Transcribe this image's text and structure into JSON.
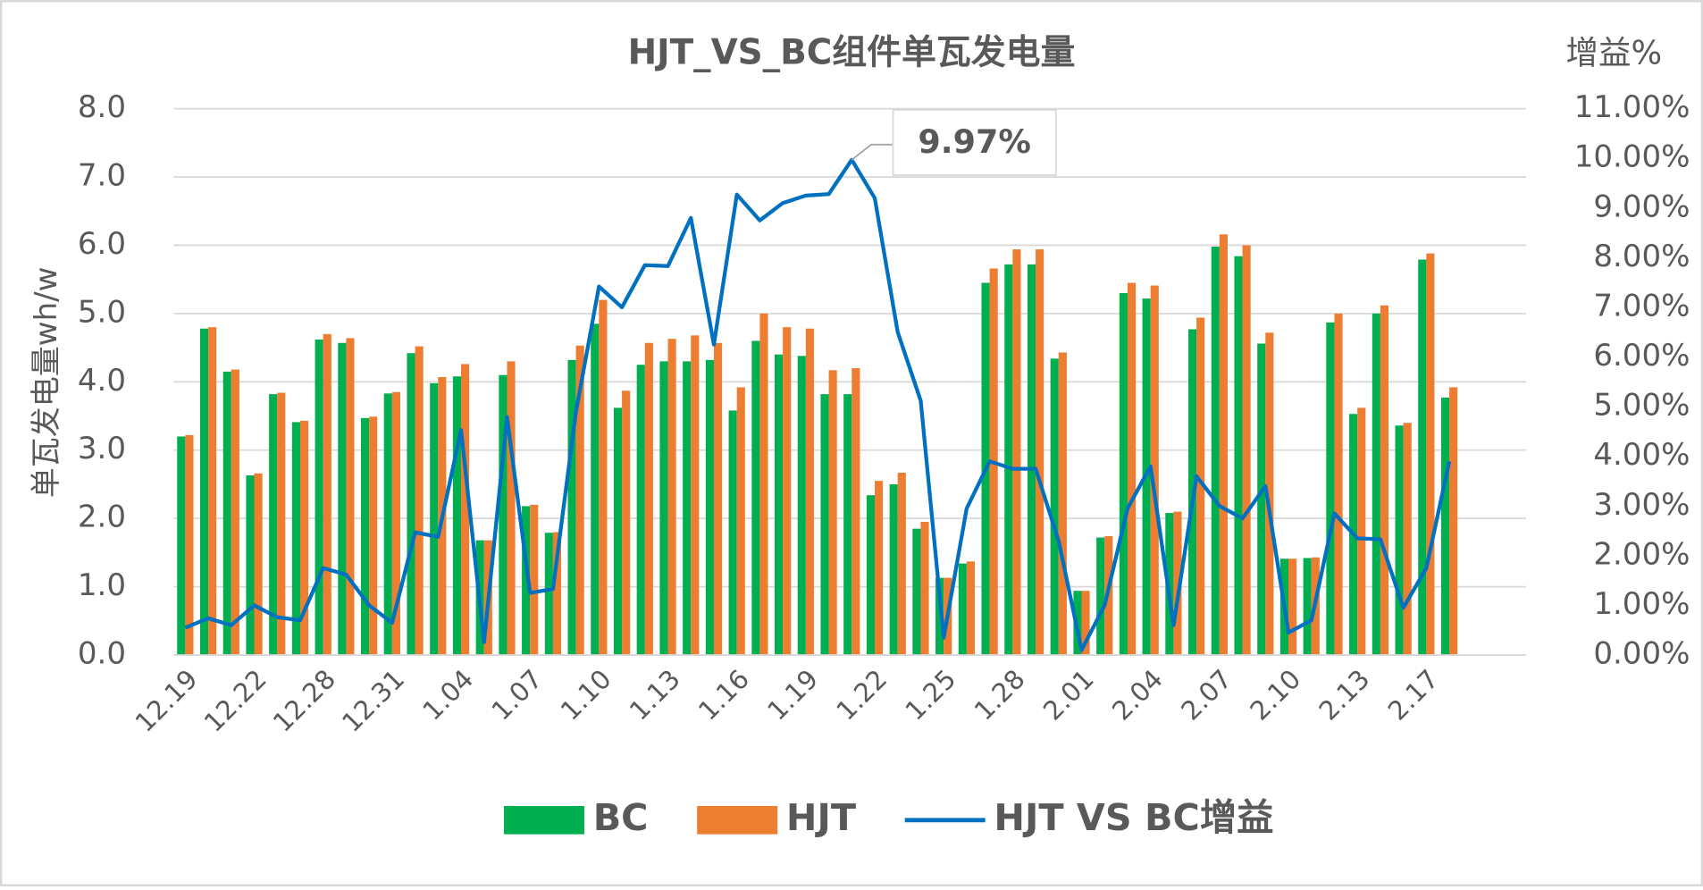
{
  "chart_data": {
    "type": "bar",
    "title": "HJT_VS_BC组件单瓦发电量",
    "y_label": "单瓦发电量wh/w",
    "y2_label": "增益%",
    "categories": [
      "12.19",
      null,
      null,
      "12.22",
      null,
      null,
      "12.28",
      null,
      null,
      "12.31",
      null,
      null,
      "1.04",
      null,
      null,
      "1.07",
      null,
      null,
      "1.10",
      null,
      null,
      "1.13",
      null,
      null,
      "1.16",
      null,
      null,
      "1.19",
      null,
      null,
      "1.22",
      null,
      null,
      "1.25",
      null,
      null,
      "1.28",
      null,
      null,
      "2.01",
      null,
      null,
      "2.04",
      null,
      null,
      "2.07",
      null,
      null,
      "2.10",
      null,
      null,
      "2.13",
      null,
      null,
      "2.17",
      null
    ],
    "series": [
      {
        "name": "BC",
        "type": "bar",
        "color": "#00b050",
        "values": [
          3.2,
          4.78,
          4.15,
          2.63,
          3.82,
          3.41,
          4.62,
          4.57,
          3.47,
          3.83,
          4.42,
          3.98,
          4.08,
          1.68,
          4.1,
          2.18,
          1.79,
          4.32,
          4.85,
          3.62,
          4.25,
          4.3,
          4.3,
          4.32,
          3.58,
          4.6,
          4.4,
          4.38,
          3.82,
          3.82,
          2.34,
          2.5,
          1.85,
          1.13,
          1.34,
          5.45,
          5.72,
          5.72,
          4.34,
          0.94,
          1.72,
          5.3,
          5.22,
          2.08,
          4.77,
          5.98,
          5.84,
          4.56,
          1.41,
          1.42,
          4.87,
          3.53,
          5.0,
          3.36,
          5.79,
          3.77
        ]
      },
      {
        "name": "HJT",
        "type": "bar",
        "color": "#ed7d31",
        "values": [
          3.22,
          4.8,
          4.18,
          2.66,
          3.84,
          3.43,
          4.7,
          4.64,
          3.49,
          3.85,
          4.52,
          4.07,
          4.26,
          1.68,
          4.3,
          2.2,
          1.8,
          4.53,
          5.2,
          3.87,
          4.57,
          4.63,
          4.68,
          4.57,
          3.92,
          5.0,
          4.8,
          4.78,
          4.17,
          4.2,
          2.55,
          2.67,
          1.95,
          1.13,
          1.37,
          5.66,
          5.94,
          5.94,
          4.43,
          0.94,
          1.74,
          5.45,
          5.41,
          2.1,
          4.94,
          6.16,
          6.0,
          4.72,
          1.41,
          1.43,
          5.0,
          3.62,
          5.12,
          3.4,
          5.88,
          3.92
        ]
      },
      {
        "name": "HJT VS BC增益",
        "type": "line",
        "axis": "y2",
        "color": "#0070c0",
        "values": [
          0.55,
          0.74,
          0.6,
          1.0,
          0.76,
          0.7,
          1.75,
          1.62,
          1.0,
          0.65,
          2.47,
          2.38,
          4.53,
          0.26,
          4.79,
          1.25,
          1.33,
          4.9,
          7.42,
          7.0,
          7.85,
          7.83,
          8.8,
          6.25,
          9.27,
          8.75,
          9.1,
          9.25,
          9.28,
          9.97,
          9.2,
          6.5,
          5.12,
          0.35,
          2.95,
          3.9,
          3.75,
          3.75,
          2.3,
          0.1,
          1.0,
          2.95,
          3.8,
          0.6,
          3.6,
          3.0,
          2.75,
          3.4,
          0.45,
          0.7,
          2.85,
          2.35,
          2.33,
          0.95,
          1.75,
          3.9
        ],
        "value_labels": [
          null,
          null,
          null,
          null,
          null,
          null,
          null,
          null,
          null,
          null,
          null,
          null,
          null,
          null,
          null,
          null,
          null,
          null,
          null,
          null,
          null,
          null,
          null,
          null,
          null,
          null,
          null,
          null,
          null,
          "9.97%",
          null,
          null,
          null,
          null,
          null,
          null,
          null,
          null,
          null,
          null,
          null,
          null,
          null,
          null,
          null,
          null,
          null,
          null,
          null,
          null,
          null,
          null,
          null,
          null,
          null,
          null
        ]
      }
    ],
    "ylim": [
      0,
      8
    ],
    "yticks": [
      {
        "value": 0,
        "label": "0.0"
      },
      {
        "value": 1,
        "label": "1.0"
      },
      {
        "value": 2,
        "label": "2.0"
      },
      {
        "value": 3,
        "label": "3.0"
      },
      {
        "value": 4,
        "label": "4.0"
      },
      {
        "value": 5,
        "label": "5.0"
      },
      {
        "value": 6,
        "label": "6.0"
      },
      {
        "value": 7,
        "label": "7.0"
      },
      {
        "value": 8,
        "label": "8.0"
      }
    ],
    "y2lim": [
      0,
      11
    ],
    "y2ticks": [
      {
        "value": 0,
        "label": "0.00%"
      },
      {
        "value": 1,
        "label": "1.00%"
      },
      {
        "value": 2,
        "label": "2.00%"
      },
      {
        "value": 3,
        "label": "3.00%"
      },
      {
        "value": 4,
        "label": "4.00%"
      },
      {
        "value": 5,
        "label": "5.00%"
      },
      {
        "value": 6,
        "label": "6.00%"
      },
      {
        "value": 7,
        "label": "7.00%"
      },
      {
        "value": 8,
        "label": "8.00%"
      },
      {
        "value": 9,
        "label": "9.00%"
      },
      {
        "value": 10,
        "label": "10.00%"
      },
      {
        "value": 11,
        "label": "11.00%"
      }
    ],
    "grid": true,
    "legend": "bottom"
  }
}
